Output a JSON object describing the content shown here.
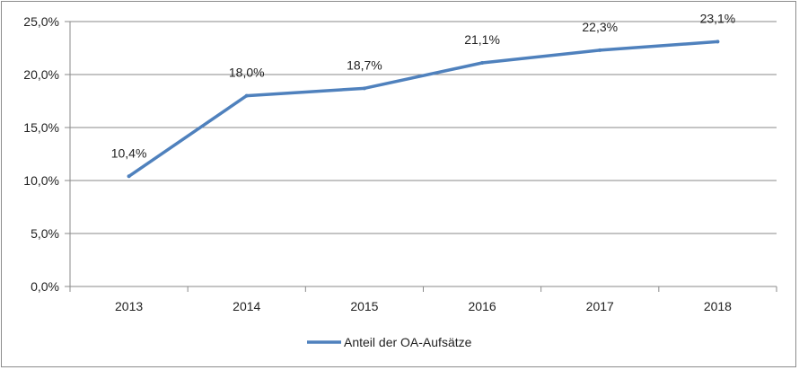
{
  "chart_data": {
    "type": "line",
    "categories": [
      "2013",
      "2014",
      "2015",
      "2016",
      "2017",
      "2018"
    ],
    "series": [
      {
        "name": "Anteil der OA-Aufsätze",
        "values": [
          10.4,
          18.0,
          18.7,
          21.1,
          22.3,
          23.1
        ],
        "labels": [
          "10,4%",
          "18,0%",
          "18,7%",
          "21,1%",
          "22,3%",
          "23,1%"
        ],
        "color": "#4f81bd"
      }
    ],
    "yticks": [
      "0,0%",
      "5,0%",
      "10,0%",
      "15,0%",
      "20,0%",
      "25,0%"
    ],
    "ytick_values": [
      0,
      5,
      10,
      15,
      20,
      25
    ],
    "ylim": [
      0,
      25
    ],
    "grid": true,
    "legend": "bottom",
    "title": "",
    "xlabel": "",
    "ylabel": ""
  }
}
